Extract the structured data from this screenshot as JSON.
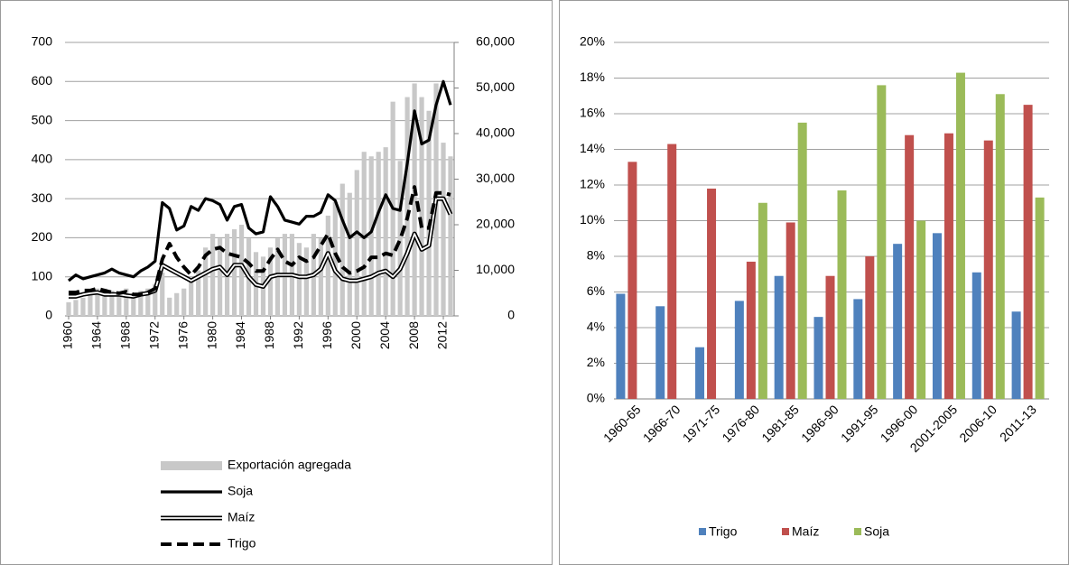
{
  "chart_data": [
    {
      "type": "line",
      "x": [
        1960,
        1961,
        1962,
        1963,
        1964,
        1965,
        1966,
        1967,
        1968,
        1969,
        1970,
        1971,
        1972,
        1973,
        1974,
        1975,
        1976,
        1977,
        1978,
        1979,
        1980,
        1981,
        1982,
        1983,
        1984,
        1985,
        1986,
        1987,
        1988,
        1989,
        1990,
        1991,
        1992,
        1993,
        1994,
        1995,
        1996,
        1997,
        1998,
        1999,
        2000,
        2001,
        2002,
        2003,
        2004,
        2005,
        2006,
        2007,
        2008,
        2009,
        2010,
        2011,
        2012,
        2013
      ],
      "xlim": [
        1959.5,
        2013.5
      ],
      "xticks": [
        1960,
        1964,
        1968,
        1972,
        1976,
        1980,
        1984,
        1988,
        1992,
        1996,
        2000,
        2004,
        2008,
        2012
      ],
      "ylim": [
        0,
        700
      ],
      "yticks": [
        0,
        100,
        200,
        300,
        400,
        500,
        600,
        700
      ],
      "y2lim": [
        0,
        60000
      ],
      "y2ticks": [
        0,
        {
          "value": 10000,
          "label": "10,000"
        },
        {
          "value": 20000,
          "label": "20,000"
        },
        {
          "value": 30000,
          "label": "30,000"
        },
        {
          "value": 40000,
          "label": "40,000"
        },
        {
          "value": 50000,
          "label": "50,000"
        },
        {
          "value": 60000,
          "label": "60,000"
        }
      ],
      "grid": true,
      "series": [
        {
          "name": "Exportación agregada",
          "type": "bar",
          "axis": "y2",
          "color": "#c8c8c8",
          "values": [
            3000,
            3500,
            4000,
            5000,
            6000,
            6000,
            5500,
            5000,
            6000,
            5000,
            5500,
            6000,
            7000,
            9500,
            4000,
            5000,
            6000,
            8000,
            10000,
            15000,
            18000,
            17000,
            18000,
            19000,
            20000,
            17000,
            14000,
            13000,
            15000,
            17000,
            18000,
            18000,
            16000,
            15000,
            18000,
            17000,
            22000,
            25000,
            29000,
            27000,
            32000,
            36000,
            35000,
            36000,
            37000,
            47000,
            34000,
            48000,
            51000,
            48000,
            45000,
            51000,
            38000,
            35000
          ]
        },
        {
          "name": "Soja",
          "type": "line",
          "color": "#000000",
          "values": [
            90,
            105,
            95,
            100,
            105,
            110,
            120,
            110,
            105,
            100,
            115,
            125,
            140,
            290,
            275,
            220,
            230,
            280,
            270,
            300,
            295,
            285,
            245,
            280,
            285,
            225,
            210,
            215,
            305,
            280,
            245,
            240,
            235,
            255,
            255,
            265,
            310,
            295,
            245,
            200,
            215,
            200,
            215,
            265,
            310,
            275,
            270,
            390,
            525,
            440,
            450,
            540,
            600,
            540
          ]
        },
        {
          "name": "Maíz",
          "type": "line",
          "color": "#000000",
          "values": [
            50,
            50,
            55,
            58,
            60,
            55,
            55,
            55,
            52,
            50,
            55,
            58,
            65,
            130,
            120,
            110,
            100,
            90,
            100,
            110,
            120,
            125,
            105,
            130,
            130,
            100,
            80,
            75,
            100,
            105,
            105,
            105,
            100,
            100,
            105,
            120,
            160,
            115,
            95,
            90,
            90,
            95,
            100,
            110,
            115,
            100,
            120,
            160,
            210,
            170,
            180,
            300,
            300,
            260
          ]
        },
        {
          "name": "Trigo",
          "type": "line",
          "color": "#000000",
          "values": [
            60,
            60,
            65,
            65,
            70,
            65,
            60,
            58,
            62,
            55,
            55,
            60,
            70,
            145,
            185,
            150,
            125,
            105,
            125,
            155,
            170,
            175,
            160,
            155,
            150,
            135,
            115,
            115,
            145,
            170,
            140,
            130,
            150,
            140,
            150,
            180,
            210,
            160,
            125,
            110,
            115,
            125,
            150,
            150,
            160,
            155,
            195,
            250,
            330,
            225,
            225,
            315,
            315,
            310
          ]
        }
      ]
    },
    {
      "type": "bar",
      "categories": [
        "1960-65",
        "1966-70",
        "1971-75",
        "1976-80",
        "1981-85",
        "1986-90",
        "1991-95",
        "1996-00",
        "2001-2005",
        "2006-10",
        "2011-13"
      ],
      "ylim": [
        0,
        20
      ],
      "yticks": [
        {
          "value": 0,
          "label": "0%"
        },
        {
          "value": 2,
          "label": "2%"
        },
        {
          "value": 4,
          "label": "4%"
        },
        {
          "value": 6,
          "label": "6%"
        },
        {
          "value": 8,
          "label": "8%"
        },
        {
          "value": 10,
          "label": "10%"
        },
        {
          "value": 12,
          "label": "12%"
        },
        {
          "value": 14,
          "label": "14%"
        },
        {
          "value": 16,
          "label": "16%"
        },
        {
          "value": 18,
          "label": "18%"
        },
        {
          "value": 20,
          "label": "20%"
        }
      ],
      "grid": true,
      "series": [
        {
          "name": "Trigo",
          "color": "#4f81bd",
          "values": [
            5.9,
            5.2,
            2.9,
            5.5,
            6.9,
            4.6,
            5.6,
            8.7,
            9.3,
            7.1,
            4.9
          ]
        },
        {
          "name": "Maíz",
          "color": "#c0504d",
          "values": [
            13.3,
            14.3,
            11.8,
            7.7,
            9.9,
            6.9,
            8.0,
            14.8,
            14.9,
            14.5,
            16.5
          ]
        },
        {
          "name": "Soja",
          "color": "#9bbb59",
          "values": [
            null,
            null,
            null,
            11.0,
            15.5,
            11.7,
            17.6,
            10.0,
            18.3,
            17.1,
            11.3
          ]
        }
      ]
    }
  ]
}
